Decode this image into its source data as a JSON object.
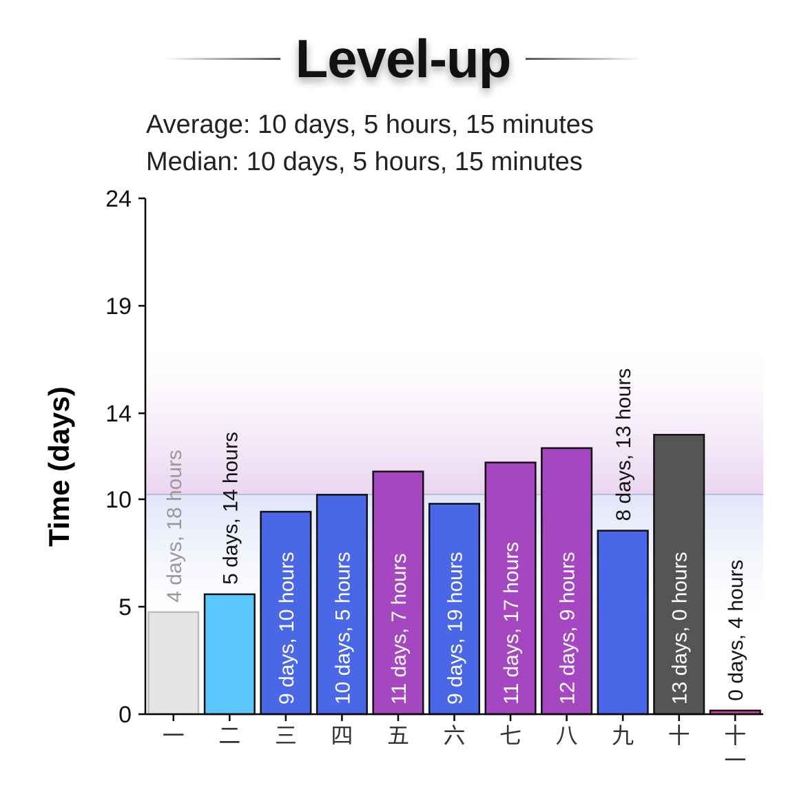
{
  "title": "Level-up",
  "stats": {
    "average": "Average: 10 days, 5 hours, 15 minutes",
    "median": "Median: 10 days, 5 hours, 15 minutes"
  },
  "chart_data": {
    "type": "bar",
    "ylabel": "Time (days)",
    "xlabel": "",
    "ylim": [
      0,
      24
    ],
    "yticks": [
      0,
      5,
      10,
      14,
      19,
      24
    ],
    "grid": false,
    "average_line": 10.22,
    "categories": [
      "一",
      "二",
      "三",
      "四",
      "五",
      "六",
      "七",
      "八",
      "九",
      "十",
      "十一"
    ],
    "values": [
      4.75,
      5.58,
      9.42,
      10.21,
      11.29,
      9.79,
      11.71,
      12.38,
      8.54,
      13.0,
      0.17
    ],
    "data_labels": [
      "4 days, 18 hours",
      "5 days, 14 hours",
      "9 days, 10 hours",
      "10 days, 5 hours",
      "11 days, 7 hours",
      "9 days, 19 hours",
      "11 days, 17 hours",
      "12 days, 9 hours",
      "8 days, 13 hours",
      "13 days, 0 hours",
      "0 days, 4 hours"
    ],
    "colors": [
      "#e4e4e4",
      "#5ac8fa",
      "#4a67e8",
      "#4a67e8",
      "#a547c0",
      "#4a67e8",
      "#a547c0",
      "#a547c0",
      "#4a67e8",
      "#555555",
      "#d0409a"
    ],
    "label_colors": [
      "#999999",
      "#111111",
      "#ffffff",
      "#ffffff",
      "#ffffff",
      "#ffffff",
      "#ffffff",
      "#ffffff",
      "#111111",
      "#ffffff",
      "#111111"
    ],
    "label_positions": [
      "above",
      "above",
      "inside",
      "inside",
      "inside",
      "inside",
      "inside",
      "inside",
      "above",
      "inside",
      "above"
    ]
  }
}
